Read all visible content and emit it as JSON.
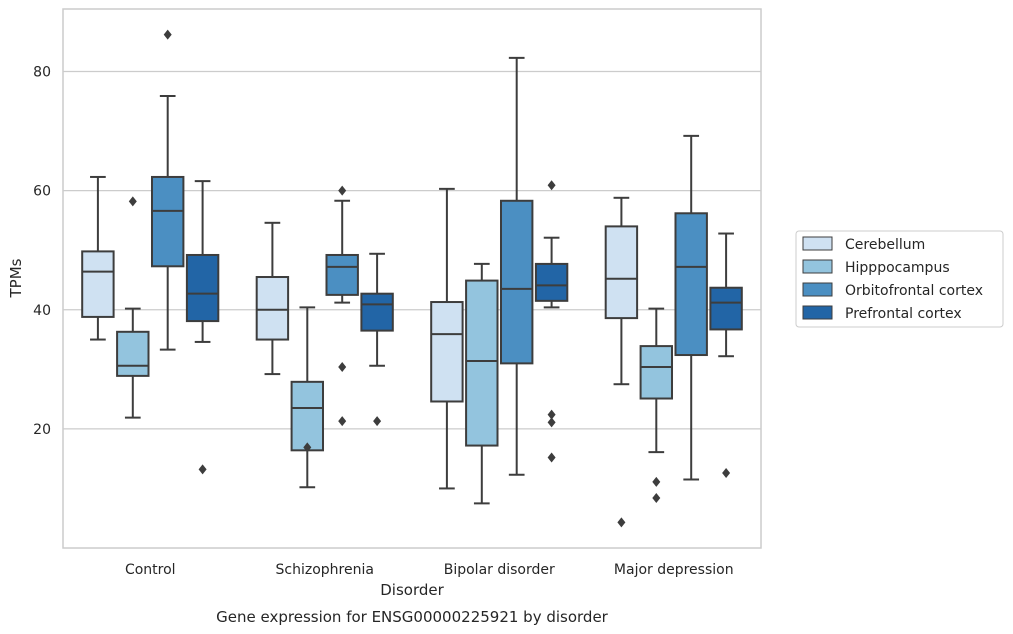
{
  "caption": "Gene expression for ENSG00000225921 by disorder",
  "chart_data": {
    "type": "box",
    "xlabel": "Disorder",
    "ylabel": "TPMs",
    "ylim": [
      0,
      90.5
    ],
    "yticks": [
      20,
      40,
      60,
      80
    ],
    "grid": "horizontal",
    "legend_position": "right",
    "categories": [
      "Control",
      "Schizophrenia",
      "Bipolar disorder",
      "Major depression"
    ],
    "series": [
      {
        "name": "Cerebellum",
        "color": "#cfe1f2",
        "boxes": [
          {
            "whislo": 35.0,
            "q1": 38.8,
            "med": 46.4,
            "q3": 49.8,
            "whishi": 62.3,
            "fliers": []
          },
          {
            "whislo": 29.2,
            "q1": 35.0,
            "med": 40.0,
            "q3": 45.5,
            "whishi": 54.6,
            "fliers": []
          },
          {
            "whislo": 10.0,
            "q1": 24.6,
            "med": 35.9,
            "q3": 41.3,
            "whishi": 60.3,
            "fliers": []
          },
          {
            "whislo": 27.5,
            "q1": 38.6,
            "med": 45.2,
            "q3": 54.0,
            "whishi": 58.8,
            "fliers": [
              4.3
            ]
          }
        ]
      },
      {
        "name": "Hipppocampus",
        "color": "#93c4de",
        "boxes": [
          {
            "whislo": 21.9,
            "q1": 28.9,
            "med": 30.6,
            "q3": 36.3,
            "whishi": 40.2,
            "fliers": [
              58.2
            ]
          },
          {
            "whislo": 10.2,
            "q1": 16.4,
            "med": 23.5,
            "q3": 27.9,
            "whishi": 40.4,
            "fliers": [
              16.9
            ]
          },
          {
            "whislo": 7.5,
            "q1": 17.2,
            "med": 31.4,
            "q3": 44.9,
            "whishi": 47.7,
            "fliers": []
          },
          {
            "whislo": 16.1,
            "q1": 25.1,
            "med": 30.4,
            "q3": 33.9,
            "whishi": 40.2,
            "fliers": [
              11.1,
              8.4
            ]
          }
        ]
      },
      {
        "name": "Orbitofrontal cortex",
        "color": "#4b8fc2",
        "boxes": [
          {
            "whislo": 33.3,
            "q1": 47.3,
            "med": 56.6,
            "q3": 62.3,
            "whishi": 75.9,
            "fliers": [
              86.2
            ]
          },
          {
            "whislo": 41.2,
            "q1": 42.5,
            "med": 47.2,
            "q3": 49.2,
            "whishi": 58.3,
            "fliers": [
              60.0,
              30.4,
              21.3
            ]
          },
          {
            "whislo": 12.3,
            "q1": 31.0,
            "med": 43.5,
            "q3": 58.3,
            "whishi": 82.3,
            "fliers": []
          },
          {
            "whislo": 11.5,
            "q1": 32.4,
            "med": 47.2,
            "q3": 56.2,
            "whishi": 69.2,
            "fliers": []
          }
        ]
      },
      {
        "name": "Prefrontal cortex",
        "color": "#2265a6",
        "boxes": [
          {
            "whislo": 34.6,
            "q1": 38.1,
            "med": 42.7,
            "q3": 49.2,
            "whishi": 61.6,
            "fliers": [
              13.2
            ]
          },
          {
            "whislo": 30.6,
            "q1": 36.5,
            "med": 40.9,
            "q3": 42.7,
            "whishi": 49.4,
            "fliers": [
              21.3
            ]
          },
          {
            "whislo": 40.4,
            "q1": 41.5,
            "med": 44.1,
            "q3": 47.7,
            "whishi": 52.1,
            "fliers": [
              60.9,
              22.4,
              21.1,
              15.2
            ]
          },
          {
            "whislo": 32.2,
            "q1": 36.7,
            "med": 41.2,
            "q3": 43.7,
            "whishi": 52.8,
            "fliers": [
              12.6
            ]
          }
        ]
      }
    ]
  }
}
